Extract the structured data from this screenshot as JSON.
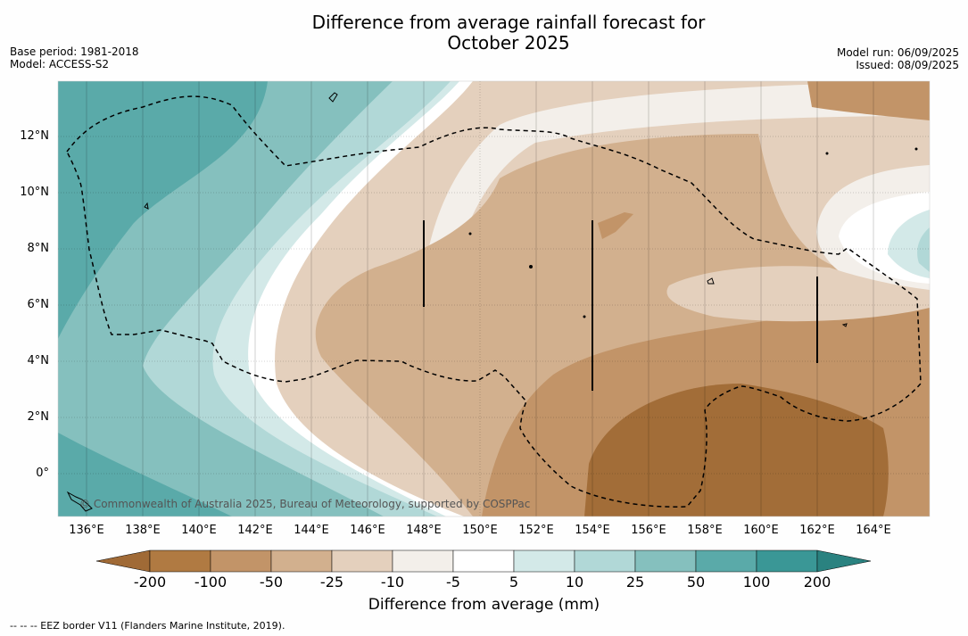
{
  "title_line1": "Difference from average rainfall forecast for",
  "title_line2": "October 2025",
  "base_period": "Base period: 1981-2018",
  "model": "Model: ACCESS-S2",
  "model_run": "Model run: 06/09/2025",
  "issued": "Issued: 08/09/2025",
  "copyright": "© Commonwealth of Australia 2025, Bureau of Meteorology, supported by COSPPac",
  "footnote": "--  --  -- EEZ border V11 (Flanders Marine Institute, 2019).",
  "lat_labels": [
    "12°N",
    "10°N",
    "8°N",
    "6°N",
    "4°N",
    "2°N",
    "0°"
  ],
  "lon_labels": [
    "136°E",
    "138°E",
    "140°E",
    "142°E",
    "144°E",
    "146°E",
    "148°E",
    "150°E",
    "152°E",
    "154°E",
    "156°E",
    "158°E",
    "160°E",
    "162°E",
    "164°E"
  ],
  "colorbar": {
    "title": "Difference from average (mm)",
    "ticks": [
      "-200",
      "-100",
      "-50",
      "-25",
      "-10",
      "-5",
      "5",
      "10",
      "25",
      "50",
      "100",
      "200"
    ],
    "colors": [
      "#a06a36",
      "#b07a42",
      "#c29468",
      "#d2b08e",
      "#e4d0bd",
      "#f3efea",
      "#ffffff",
      "#d3e9e8",
      "#b1d8d7",
      "#85c0be",
      "#5aaaa9",
      "#3a9796",
      "#2a8280"
    ]
  }
}
